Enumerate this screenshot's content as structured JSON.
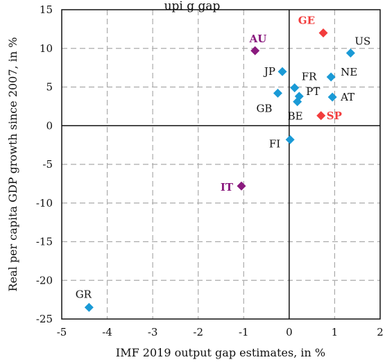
{
  "chart_data": {
    "type": "scatter",
    "title": "upi g gap",
    "xlabel": "IMF 2019 output gap estimates, in %",
    "ylabel": "Real per capita GDP growth since 2007, in %",
    "xlim": [
      -5,
      2
    ],
    "ylim": [
      -25,
      15
    ],
    "xticks": [
      "-5",
      "-4",
      "-3",
      "-2",
      "-1",
      "0",
      "1",
      "2"
    ],
    "yticks": [
      "15",
      "10",
      "5",
      "0",
      "-5",
      "-10",
      "-15",
      "-20",
      "-25"
    ],
    "grid": true,
    "colors": {
      "default": "#1a9ad6",
      "highlight_red": "#f23c3c",
      "highlight_purple": "#8a1a7e"
    },
    "points": [
      {
        "label": "GE",
        "x": 0.75,
        "y": 12.0,
        "color": "highlight_red",
        "bold": true
      },
      {
        "label": "SP",
        "x": 0.7,
        "y": 1.3,
        "color": "highlight_red",
        "bold": true
      },
      {
        "label": "AU",
        "x": -0.75,
        "y": 9.7,
        "color": "highlight_purple",
        "bold": true
      },
      {
        "label": "IT",
        "x": -1.05,
        "y": -7.8,
        "color": "highlight_purple",
        "bold": true
      },
      {
        "label": "US",
        "x": 1.35,
        "y": 9.4,
        "color": "default",
        "bold": false
      },
      {
        "label": "NE",
        "x": 0.92,
        "y": 6.3,
        "color": "default",
        "bold": false
      },
      {
        "label": "AT",
        "x": 0.95,
        "y": 3.7,
        "color": "default",
        "bold": false
      },
      {
        "label": "JP",
        "x": -0.15,
        "y": 7.0,
        "color": "default",
        "bold": false
      },
      {
        "label": "FR",
        "x": 0.12,
        "y": 4.9,
        "color": "default",
        "bold": false
      },
      {
        "label": "PT",
        "x": 0.22,
        "y": 3.8,
        "color": "default",
        "bold": false
      },
      {
        "label": "BE",
        "x": 0.18,
        "y": 3.1,
        "color": "default",
        "bold": false
      },
      {
        "label": "GB",
        "x": -0.25,
        "y": 4.2,
        "color": "default",
        "bold": false
      },
      {
        "label": "FI",
        "x": 0.02,
        "y": -1.8,
        "color": "default",
        "bold": false
      },
      {
        "label": "GR",
        "x": -4.4,
        "y": -23.5,
        "color": "default",
        "bold": false
      }
    ]
  }
}
